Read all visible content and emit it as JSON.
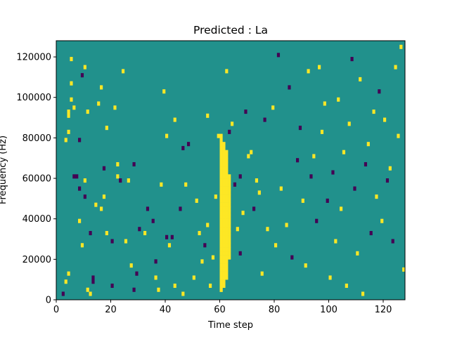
{
  "chart_data": {
    "type": "heatmap",
    "title": "Predicted : La",
    "xlabel": "Time step",
    "ylabel": "Frequency (Hz)",
    "xlim": [
      0,
      128
    ],
    "ylim": [
      0,
      128000
    ],
    "x_ticks": [
      0,
      20,
      40,
      60,
      80,
      100,
      120
    ],
    "y_ticks": [
      0,
      20000,
      40000,
      60000,
      80000,
      100000,
      120000
    ],
    "x_tick_labels": [
      "0",
      "20",
      "40",
      "60",
      "80",
      "100",
      "120"
    ],
    "y_tick_labels": [
      "0",
      "20000",
      "40000",
      "60000",
      "80000",
      "100000",
      "120000"
    ],
    "n_time_steps": 128,
    "n_freq_bins": 64,
    "colors": {
      "low": "#440154",
      "mid": "#21918c",
      "high": "#fde725"
    },
    "background_value": 0,
    "value_scale": [
      -1,
      0,
      1
    ],
    "cells": [
      [
        2,
        1,
        -1
      ],
      [
        3,
        4,
        1
      ],
      [
        3,
        39,
        1
      ],
      [
        4,
        41,
        1
      ],
      [
        4,
        6,
        1
      ],
      [
        4,
        45,
        1
      ],
      [
        4,
        46,
        1
      ],
      [
        5,
        59,
        1
      ],
      [
        5,
        49,
        1
      ],
      [
        5,
        53,
        1
      ],
      [
        6,
        30,
        -1
      ],
      [
        6,
        47,
        1
      ],
      [
        7,
        30,
        -1
      ],
      [
        8,
        39,
        -1
      ],
      [
        8,
        27,
        -1
      ],
      [
        8,
        19,
        1
      ],
      [
        9,
        55,
        -1
      ],
      [
        9,
        13,
        1
      ],
      [
        10,
        25,
        -1
      ],
      [
        10,
        29,
        1
      ],
      [
        10,
        57,
        1
      ],
      [
        11,
        2,
        1
      ],
      [
        11,
        46,
        1
      ],
      [
        12,
        1,
        1
      ],
      [
        12,
        16,
        -1
      ],
      [
        13,
        4,
        -1
      ],
      [
        13,
        5,
        -1
      ],
      [
        14,
        23,
        1
      ],
      [
        15,
        48,
        1
      ],
      [
        16,
        22,
        1
      ],
      [
        16,
        52,
        1
      ],
      [
        17,
        25,
        1
      ],
      [
        17,
        32,
        -1
      ],
      [
        18,
        16,
        1
      ],
      [
        18,
        42,
        1
      ],
      [
        20,
        3,
        -1
      ],
      [
        20,
        14,
        -1
      ],
      [
        21,
        47,
        1
      ],
      [
        22,
        33,
        1
      ],
      [
        22,
        30,
        1
      ],
      [
        23,
        29,
        -1
      ],
      [
        24,
        56,
        1
      ],
      [
        25,
        14,
        1
      ],
      [
        26,
        29,
        1
      ],
      [
        27,
        8,
        1
      ],
      [
        28,
        2,
        -1
      ],
      [
        28,
        33,
        -1
      ],
      [
        29,
        6,
        -1
      ],
      [
        30,
        17,
        -1
      ],
      [
        32,
        16,
        1
      ],
      [
        33,
        22,
        -1
      ],
      [
        35,
        19,
        -1
      ],
      [
        36,
        5,
        1
      ],
      [
        36,
        9,
        -1
      ],
      [
        37,
        2,
        1
      ],
      [
        38,
        28,
        1
      ],
      [
        39,
        51,
        1
      ],
      [
        40,
        15,
        -1
      ],
      [
        40,
        40,
        1
      ],
      [
        41,
        13,
        1
      ],
      [
        42,
        15,
        -1
      ],
      [
        43,
        44,
        1
      ],
      [
        43,
        3,
        1
      ],
      [
        45,
        22,
        -1
      ],
      [
        46,
        1,
        1
      ],
      [
        46,
        37,
        -1
      ],
      [
        47,
        28,
        1
      ],
      [
        48,
        38,
        -1
      ],
      [
        50,
        5,
        1
      ],
      [
        51,
        24,
        1
      ],
      [
        52,
        16,
        1
      ],
      [
        53,
        9,
        1
      ],
      [
        54,
        13,
        -1
      ],
      [
        55,
        18,
        1
      ],
      [
        55,
        45,
        1
      ],
      [
        56,
        3,
        1
      ],
      [
        57,
        10,
        1
      ],
      [
        58,
        25,
        1
      ],
      [
        59,
        40,
        1
      ],
      [
        60,
        2,
        1
      ],
      [
        61,
        26,
        1
      ],
      [
        62,
        56,
        1
      ],
      [
        63,
        41,
        -1
      ],
      [
        64,
        43,
        1
      ],
      [
        65,
        28,
        -1
      ],
      [
        66,
        17,
        1
      ],
      [
        67,
        11,
        -1
      ],
      [
        67,
        30,
        -1
      ],
      [
        68,
        21,
        1
      ],
      [
        69,
        46,
        -1
      ],
      [
        70,
        35,
        1
      ],
      [
        71,
        36,
        1
      ],
      [
        72,
        22,
        -1
      ],
      [
        73,
        29,
        1
      ],
      [
        74,
        26,
        1
      ],
      [
        75,
        6,
        1
      ],
      [
        76,
        44,
        -1
      ],
      [
        77,
        17,
        1
      ],
      [
        79,
        47,
        1
      ],
      [
        80,
        13,
        1
      ],
      [
        81,
        60,
        -1
      ],
      [
        82,
        27,
        1
      ],
      [
        84,
        18,
        1
      ],
      [
        85,
        52,
        -1
      ],
      [
        86,
        10,
        -1
      ],
      [
        88,
        34,
        -1
      ],
      [
        89,
        42,
        -1
      ],
      [
        90,
        24,
        1
      ],
      [
        91,
        8,
        1
      ],
      [
        92,
        56,
        1
      ],
      [
        93,
        30,
        -1
      ],
      [
        94,
        35,
        1
      ],
      [
        95,
        19,
        -1
      ],
      [
        96,
        57,
        1
      ],
      [
        97,
        41,
        1
      ],
      [
        98,
        48,
        1
      ],
      [
        99,
        24,
        -1
      ],
      [
        100,
        5,
        1
      ],
      [
        101,
        31,
        -1
      ],
      [
        102,
        14,
        1
      ],
      [
        103,
        49,
        1
      ],
      [
        104,
        22,
        1
      ],
      [
        105,
        36,
        1
      ],
      [
        106,
        3,
        1
      ],
      [
        107,
        43,
        1
      ],
      [
        108,
        59,
        -1
      ],
      [
        109,
        27,
        -1
      ],
      [
        110,
        11,
        1
      ],
      [
        111,
        54,
        1
      ],
      [
        112,
        1,
        1
      ],
      [
        113,
        33,
        -1
      ],
      [
        114,
        38,
        1
      ],
      [
        115,
        16,
        -1
      ],
      [
        116,
        46,
        1
      ],
      [
        117,
        25,
        1
      ],
      [
        118,
        51,
        -1
      ],
      [
        119,
        19,
        1
      ],
      [
        120,
        44,
        1
      ],
      [
        121,
        29,
        -1
      ],
      [
        122,
        32,
        1
      ],
      [
        123,
        14,
        -1
      ],
      [
        124,
        57,
        1
      ],
      [
        125,
        40,
        1
      ],
      [
        126,
        62,
        1
      ],
      [
        127,
        7,
        1
      ]
    ],
    "dense_columns": [
      {
        "x": 60,
        "y_from": 2,
        "y_to": 40,
        "value": 1
      },
      {
        "x": 61,
        "y_from": 3,
        "y_to": 38,
        "value": 1
      },
      {
        "x": 62,
        "y_from": 5,
        "y_to": 36,
        "value": 1
      },
      {
        "x": 63,
        "y_from": 10,
        "y_to": 30,
        "value": 1
      }
    ]
  }
}
